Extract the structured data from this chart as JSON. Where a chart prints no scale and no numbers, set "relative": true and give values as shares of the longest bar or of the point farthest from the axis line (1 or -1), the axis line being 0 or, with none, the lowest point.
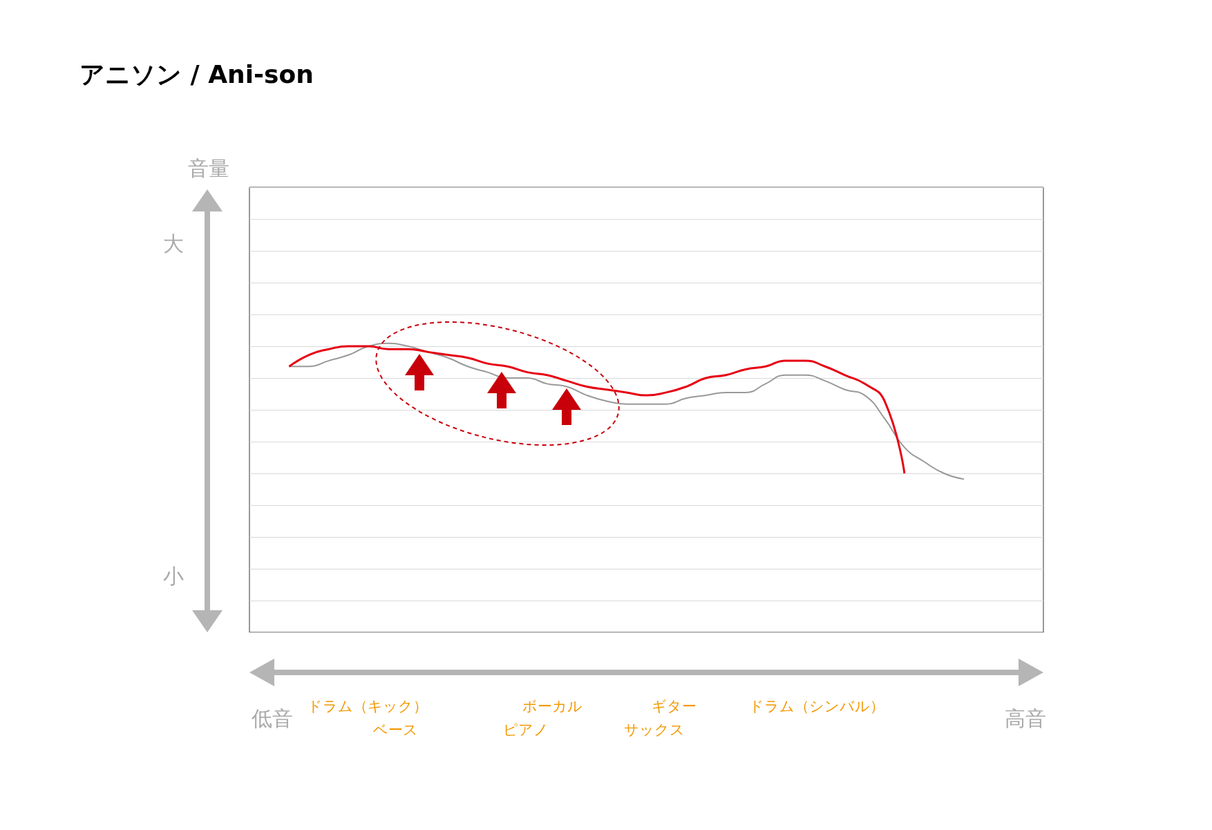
{
  "chart_data": {
    "type": "line",
    "title": "アニソン / Ani-son",
    "relative": true,
    "grid": "y",
    "categories": [
      null,
      null,
      null,
      null,
      null,
      null,
      null,
      null,
      null,
      null,
      null,
      null,
      null,
      null,
      null,
      null,
      null,
      null,
      null,
      null,
      null,
      null,
      null,
      null,
      null,
      null,
      null,
      null,
      null,
      null,
      null,
      null,
      null,
      null,
      null,
      null,
      null,
      null,
      null,
      null,
      null
    ],
    "series": [
      {
        "color": "#999999",
        "values": [
          null,
          null,
          0.92,
          0.92,
          0.94,
          0.96,
          0.99,
          1.0,
          0.99,
          0.97,
          0.95,
          0.92,
          0.9,
          0.88,
          0.88,
          0.86,
          0.85,
          0.82,
          0.8,
          0.79,
          0.79,
          0.79,
          0.81,
          0.82,
          0.83,
          0.83,
          0.86,
          0.89,
          0.89,
          0.87,
          0.84,
          0.82,
          0.74,
          0.64,
          0.59,
          0.55,
          0.53,
          null,
          null,
          null,
          null
        ]
      },
      {
        "color": "#e60012",
        "values": [
          null,
          null,
          0.92,
          0.96,
          0.98,
          0.99,
          0.99,
          0.98,
          0.98,
          0.97,
          0.96,
          0.95,
          0.93,
          0.92,
          0.9,
          0.89,
          0.87,
          0.85,
          0.84,
          0.83,
          0.82,
          0.83,
          0.85,
          0.88,
          0.89,
          0.91,
          0.92,
          0.94,
          0.94,
          0.92,
          0.89,
          0.86,
          0.8,
          0.55,
          null,
          null,
          null,
          null,
          null,
          null,
          null
        ]
      }
    ],
    "annotations": [
      "音量",
      "大",
      "小",
      "低音",
      "高音",
      "ドラム（キック）",
      "ベース",
      "ボーカル",
      "ピアノ",
      "ギター",
      "サックス",
      "ドラム（シンバル）"
    ]
  }
}
